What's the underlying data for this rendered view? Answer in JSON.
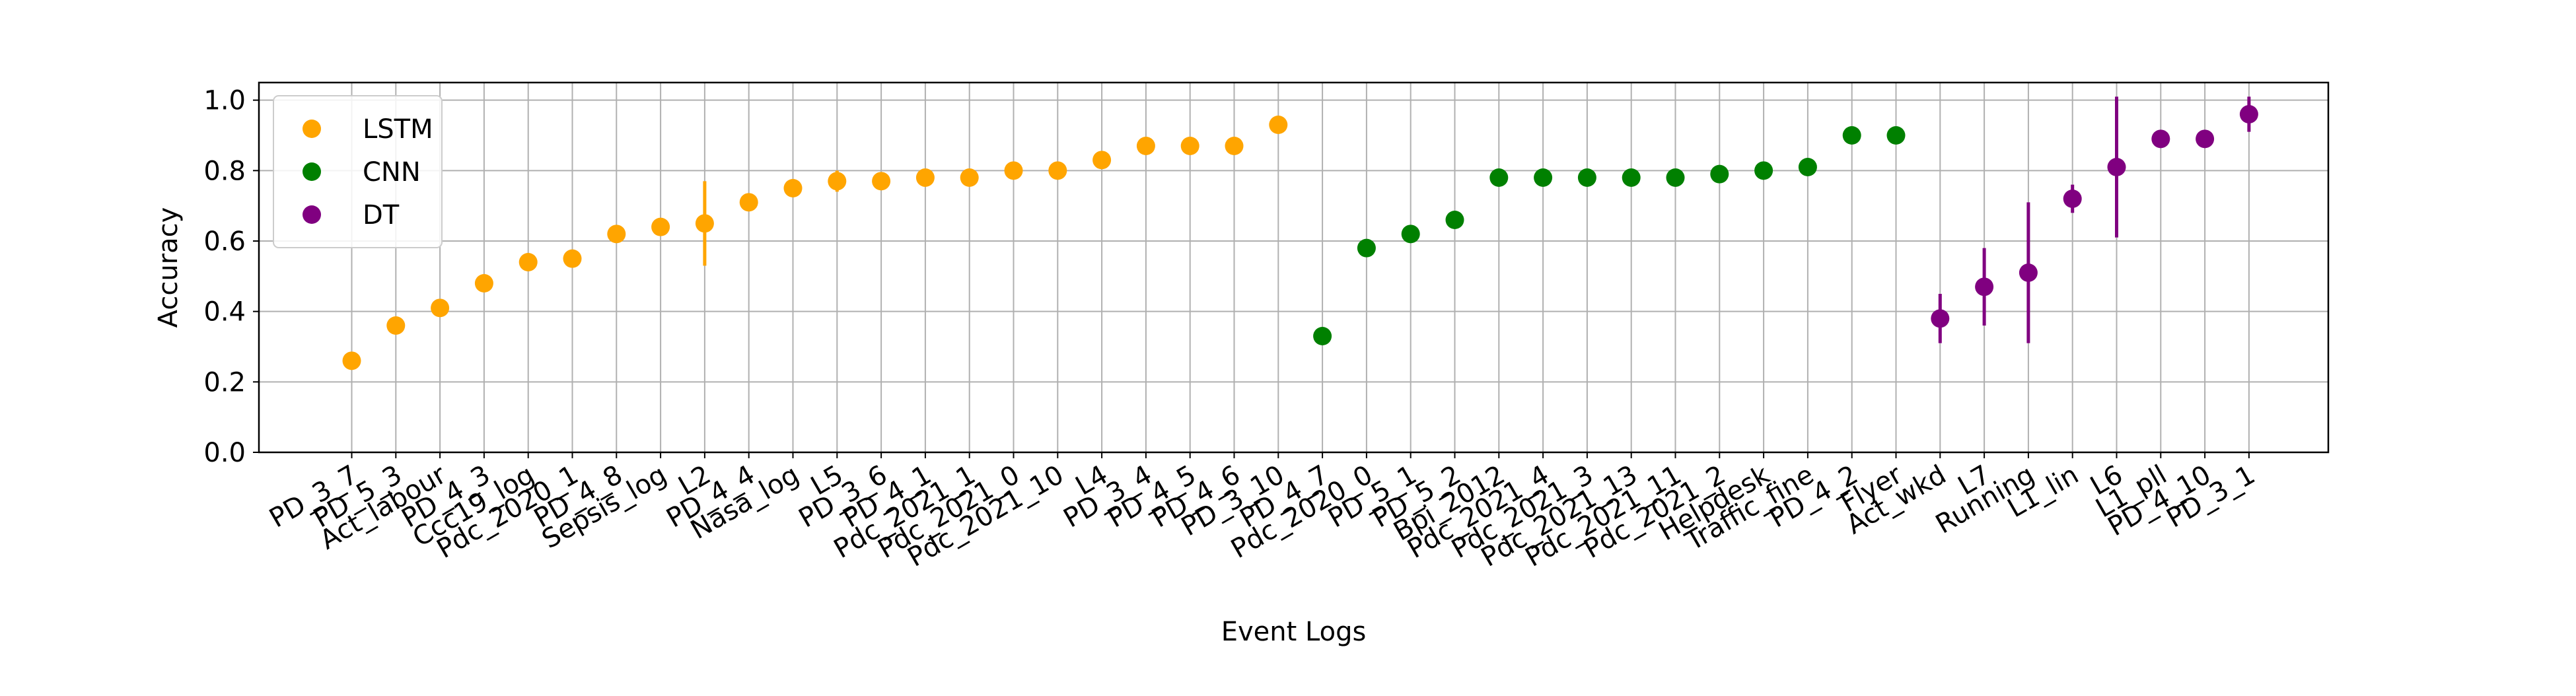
{
  "chart_data": {
    "type": "scatter",
    "title": "",
    "xlabel": "Event Logs",
    "ylabel": "Accuracy",
    "ylim": [
      0.0,
      1.05
    ],
    "yticks": [
      "0.0",
      "0.2",
      "0.4",
      "0.6",
      "0.8",
      "1.0"
    ],
    "grid": true,
    "legend_position": "top-left",
    "categories": [
      "PD_3_7",
      "PD_5_3",
      "Act_labour",
      "PD_4_3",
      "Ccc19_log",
      "Pdc_2020_1",
      "PD_4_8",
      "Sepsis_log",
      "L2",
      "PD_4_4",
      "Nasa_log",
      "L5",
      "PD_3_6",
      "PD_4_1",
      "Pdc_2021_1",
      "Pdc_2021_0",
      "Pdc_2021_10",
      "L4",
      "PD_3_4",
      "PD_4_5",
      "PD_4_6",
      "PD_3_10",
      "PD_4_7",
      "Pdc_2020_0",
      "PD_5_1",
      "PD_5_2",
      "Bpi_2012",
      "Pdc_2021_4",
      "Pdc_2021_3",
      "Pdc_2021_13",
      "Pdc_2021_11",
      "Pdc_2021_2",
      "Helpdesk",
      "Traffic_fine",
      "PD_4_2",
      "Flyer",
      "Act_wkd",
      "L7",
      "Running",
      "L1_lin",
      "L6",
      "L1_pll",
      "PD_4_10",
      "PD_3_1"
    ],
    "series": [
      {
        "name": "LSTM",
        "color": "#ffa500",
        "points": [
          {
            "x": "PD_3_7",
            "y": 0.26,
            "err": 0.0
          },
          {
            "x": "PD_5_3",
            "y": 0.36,
            "err": 0.0
          },
          {
            "x": "Act_labour",
            "y": 0.41,
            "err": 0.0
          },
          {
            "x": "PD_4_3",
            "y": 0.48,
            "err": 0.0
          },
          {
            "x": "Ccc19_log",
            "y": 0.54,
            "err": 0.0
          },
          {
            "x": "Pdc_2020_1",
            "y": 0.55,
            "err": 0.0
          },
          {
            "x": "PD_4_8",
            "y": 0.62,
            "err": 0.0
          },
          {
            "x": "Sepsis_log",
            "y": 0.64,
            "err": 0.0
          },
          {
            "x": "L2",
            "y": 0.65,
            "err": 0.12
          },
          {
            "x": "PD_4_4",
            "y": 0.71,
            "err": 0.0
          },
          {
            "x": "Nasa_log",
            "y": 0.75,
            "err": 0.0
          },
          {
            "x": "L5",
            "y": 0.77,
            "err": 0.03
          },
          {
            "x": "PD_3_6",
            "y": 0.77,
            "err": 0.0
          },
          {
            "x": "PD_4_1",
            "y": 0.78,
            "err": 0.0
          },
          {
            "x": "Pdc_2021_1",
            "y": 0.78,
            "err": 0.0
          },
          {
            "x": "Pdc_2021_0",
            "y": 0.8,
            "err": 0.0
          },
          {
            "x": "Pdc_2021_10",
            "y": 0.8,
            "err": 0.0
          },
          {
            "x": "L4",
            "y": 0.83,
            "err": 0.0
          },
          {
            "x": "PD_3_4",
            "y": 0.87,
            "err": 0.0
          },
          {
            "x": "PD_4_5",
            "y": 0.87,
            "err": 0.0
          },
          {
            "x": "PD_4_6",
            "y": 0.87,
            "err": 0.0
          },
          {
            "x": "PD_3_10",
            "y": 0.93,
            "err": 0.0
          }
        ]
      },
      {
        "name": "CNN",
        "color": "#008000",
        "points": [
          {
            "x": "PD_4_7",
            "y": 0.33,
            "err": 0.0
          },
          {
            "x": "Pdc_2020_0",
            "y": 0.58,
            "err": 0.0
          },
          {
            "x": "PD_5_1",
            "y": 0.62,
            "err": 0.02
          },
          {
            "x": "PD_5_2",
            "y": 0.66,
            "err": 0.0
          },
          {
            "x": "Bpi_2012",
            "y": 0.78,
            "err": 0.0
          },
          {
            "x": "Pdc_2021_4",
            "y": 0.78,
            "err": 0.0
          },
          {
            "x": "Pdc_2021_3",
            "y": 0.78,
            "err": 0.0
          },
          {
            "x": "Pdc_2021_13",
            "y": 0.78,
            "err": 0.0
          },
          {
            "x": "Pdc_2021_11",
            "y": 0.78,
            "err": 0.0
          },
          {
            "x": "Pdc_2021_2",
            "y": 0.79,
            "err": 0.0
          },
          {
            "x": "Helpdesk",
            "y": 0.8,
            "err": 0.0
          },
          {
            "x": "Traffic_fine",
            "y": 0.81,
            "err": 0.0
          },
          {
            "x": "PD_4_2",
            "y": 0.9,
            "err": 0.0
          },
          {
            "x": "Flyer",
            "y": 0.9,
            "err": 0.0
          }
        ]
      },
      {
        "name": "DT",
        "color": "#800080",
        "points": [
          {
            "x": "Act_wkd",
            "y": 0.38,
            "err": 0.07
          },
          {
            "x": "L7",
            "y": 0.47,
            "err": 0.11
          },
          {
            "x": "Running",
            "y": 0.51,
            "err": 0.2
          },
          {
            "x": "L1_lin",
            "y": 0.72,
            "err": 0.04
          },
          {
            "x": "L6",
            "y": 0.81,
            "err": 0.2
          },
          {
            "x": "L1_pll",
            "y": 0.89,
            "err": 0.0
          },
          {
            "x": "PD_4_10",
            "y": 0.89,
            "err": 0.0
          },
          {
            "x": "PD_3_1",
            "y": 0.96,
            "err": 0.05
          }
        ]
      }
    ]
  }
}
